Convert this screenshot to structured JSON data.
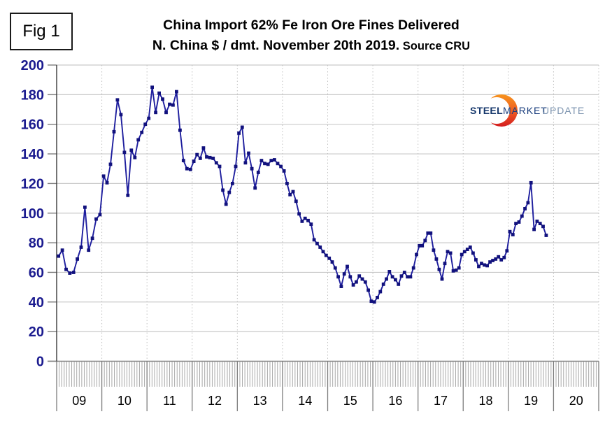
{
  "figure_label": "Fig 1",
  "title": {
    "line1": "China Import 62% Fe Iron Ore Fines Delivered",
    "line2": "N. China $ / dmt. November 20th 2019.",
    "source": " Source CRU"
  },
  "logo": {
    "steel": "STEEL",
    "market": "MARKET",
    "update": "UPDATE",
    "steel_color": "#14366b",
    "market_color": "#1a3e7e",
    "update_color": "#7e95b0",
    "crescent_top_color": "#f7941e",
    "crescent_mid_color": "#ef5a22",
    "crescent_bottom_color": "#d31d20"
  },
  "chart_data": {
    "type": "line",
    "title": "China Import 62% Fe Iron Ore Fines Delivered N. China $ / dmt. November 20th 2019. Source CRU",
    "xlabel": "",
    "ylabel": "",
    "ylim": [
      0,
      200
    ],
    "y_ticks": [
      0,
      20,
      40,
      60,
      80,
      100,
      120,
      140,
      160,
      180,
      200
    ],
    "x_tick_labels": [
      "09",
      "10",
      "11",
      "12",
      "13",
      "14",
      "15",
      "16",
      "17",
      "18",
      "19",
      "20"
    ],
    "grid": true,
    "legend_position": "none",
    "axis_label_color": "#1b1b8f",
    "year_label_color": "#000000",
    "grid_color": "#c9c9c9",
    "year_grid_color": "#c0c0c0",
    "axis_color": "#7d7d7d",
    "left_axis_color": "#3a3a3a",
    "minor_tick_color": "#a8a8a8",
    "series": [
      {
        "name": "China import 62% Fe iron ore fines, delivered N. China, $/dmt",
        "line_color": "#1e1e9e",
        "marker_color": "#11117d",
        "values_by_year": [
          {
            "year_label": "09",
            "fraction": 1,
            "values": [
              71,
              75,
              62,
              59.5,
              60,
              69,
              77,
              104,
              75,
              83,
              96,
              99
            ]
          },
          {
            "year_label": "10",
            "fraction": 1,
            "values": [
              125,
              120.5,
              133,
              155,
              176.5,
              166.5,
              141,
              112,
              142.5,
              137.5,
              149.5,
              154.5,
              160
            ]
          },
          {
            "year_label": "11",
            "fraction": 1,
            "values": [
              164,
              185,
              168,
              181,
              177,
              168,
              173.5,
              173,
              182,
              156,
              135.5,
              130,
              129.5
            ]
          },
          {
            "year_label": "12",
            "fraction": 1,
            "values": [
              135,
              139.5,
              137,
              144,
              138,
              137.5,
              137,
              134,
              131.5,
              115.5,
              106,
              114,
              120,
              131.5
            ]
          },
          {
            "year_label": "13",
            "fraction": 1,
            "values": [
              154,
              158,
              134,
              140.5,
              130,
              117,
              127.5,
              135.5,
              133.5,
              133,
              135.5,
              136,
              133.5,
              131.5
            ]
          },
          {
            "year_label": "14",
            "fraction": 1,
            "values": [
              128.5,
              120,
              112.5,
              114.5,
              108,
              99.5,
              94.5,
              96.5,
              95,
              92.5,
              82,
              79.5,
              77,
              74,
              71.5
            ]
          },
          {
            "year_label": "15",
            "fraction": 1,
            "values": [
              69.5,
              67,
              63,
              57,
              50.5,
              59,
              64,
              57,
              51.5,
              53.5,
              57.5,
              55.5,
              53.5,
              48,
              40.5
            ]
          },
          {
            "year_label": "16",
            "fraction": 1,
            "values": [
              40,
              43,
              47,
              52,
              55.5,
              60.5,
              57,
              55,
              52,
              57.5,
              60,
              57,
              57,
              63,
              72
            ]
          },
          {
            "year_label": "17",
            "fraction": 1,
            "values": [
              78,
              78,
              81.5,
              86.5,
              86.5,
              75,
              69,
              62,
              55.5,
              66,
              74,
              73,
              61,
              61.5,
              63,
              72
            ]
          },
          {
            "year_label": "18",
            "fraction": 1,
            "values": [
              74,
              75.5,
              77,
              73,
              68.5,
              64,
              66,
              65,
              64.5,
              67,
              68,
              69,
              70.5,
              68.5,
              70,
              74.5
            ]
          },
          {
            "year_label": "19",
            "fraction": 0.87,
            "values": [
              87.5,
              85.5,
              93,
              94,
              98,
              103,
              107,
              120.5,
              89,
              94.5,
              93,
              91,
              85
            ]
          }
        ]
      }
    ]
  }
}
